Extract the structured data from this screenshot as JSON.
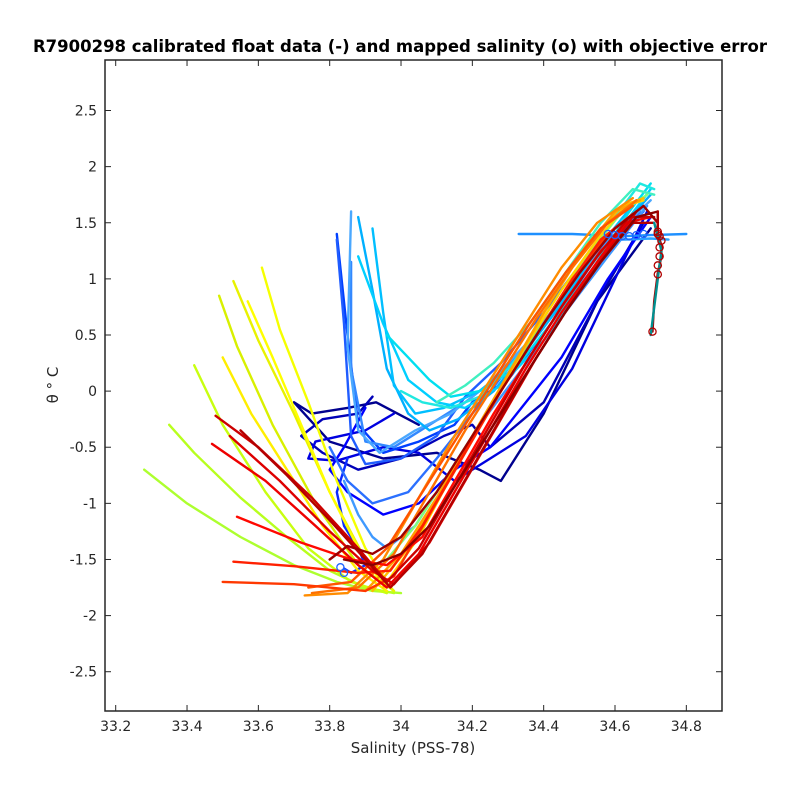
{
  "chart_data": {
    "type": "line",
    "title": "R7900298 calibrated float data (-) and mapped salinity (o) with objective error",
    "xlabel": "Salinity (PSS-78)",
    "ylabel": "θ ° C",
    "xlim": [
      33.17,
      34.9
    ],
    "ylim": [
      -2.85,
      2.95
    ],
    "xticks": [
      33.2,
      33.4,
      33.6,
      33.8,
      34,
      34.2,
      34.4,
      34.6,
      34.8
    ],
    "xtick_labels": [
      "33.2",
      "33.4",
      "33.6",
      "33.8",
      "34",
      "34.2",
      "34.4",
      "34.6",
      "34.8"
    ],
    "yticks": [
      -2.5,
      -2,
      -1.5,
      -1,
      -0.5,
      0,
      0.5,
      1,
      1.5,
      2,
      2.5
    ],
    "ytick_labels": [
      "-2.5",
      "-2",
      "-1.5",
      "-1",
      "-0.5",
      "0",
      "0.5",
      "1",
      "1.5",
      "2",
      "2.5"
    ],
    "grid": false,
    "series": [
      {
        "color": "#00008f",
        "x": [
          34.05,
          33.93,
          33.85,
          33.75,
          33.7,
          33.8,
          33.95,
          34.1,
          34.22,
          34.28,
          34.4,
          34.55,
          34.7
        ],
        "y": [
          -0.3,
          -0.1,
          -0.15,
          -0.2,
          -0.1,
          -0.45,
          -0.6,
          -0.55,
          -0.7,
          -0.8,
          -0.2,
          0.8,
          1.45
        ]
      },
      {
        "color": "#0000b8",
        "x": [
          33.92,
          33.88,
          33.78,
          33.72,
          33.78,
          33.88,
          34.0,
          34.12,
          34.2,
          34.25,
          34.4,
          34.55,
          34.68
        ],
        "y": [
          -0.05,
          -0.2,
          -0.25,
          -0.4,
          -0.55,
          -0.7,
          -0.6,
          -0.4,
          -0.3,
          -0.5,
          -0.1,
          0.8,
          1.5
        ]
      },
      {
        "color": "#0000e0",
        "x": [
          33.98,
          33.9,
          33.76,
          33.74,
          33.82,
          33.95,
          34.05,
          34.15,
          34.25,
          34.35,
          34.48,
          34.6,
          34.69
        ],
        "y": [
          -0.2,
          -0.35,
          -0.45,
          -0.6,
          -0.62,
          -0.5,
          -0.55,
          -0.8,
          -0.6,
          -0.4,
          0.2,
          1.0,
          1.6
        ]
      },
      {
        "color": "#0000ff",
        "x": [
          33.9,
          33.84,
          33.8,
          33.85,
          33.95,
          34.05,
          34.15,
          34.25,
          34.3,
          34.45,
          34.58,
          34.7
        ],
        "y": [
          -0.15,
          -0.5,
          -0.7,
          -0.9,
          -1.1,
          -1.0,
          -0.7,
          -0.5,
          -0.3,
          0.3,
          1.0,
          1.55
        ]
      },
      {
        "color": "#0a2bff",
        "x": [
          33.85,
          33.82,
          33.84,
          33.88,
          33.9,
          33.86,
          33.84
        ],
        "y": [
          -0.6,
          -0.9,
          -1.2,
          -1.4,
          -1.55,
          -1.62,
          -1.58
        ]
      },
      {
        "color": "#0040ff",
        "x": [
          33.82,
          33.85,
          33.88,
          33.95,
          34.05,
          34.15,
          34.2,
          34.3,
          34.42,
          34.55,
          34.68
        ],
        "y": [
          1.4,
          0.5,
          -0.3,
          -0.55,
          -0.45,
          -0.3,
          -0.1,
          0.1,
          0.6,
          1.2,
          1.6
        ]
      },
      {
        "color": "#1f5cff",
        "x": [
          33.82,
          33.84,
          33.86,
          33.9,
          34.0,
          34.1,
          34.18,
          34.28,
          34.4,
          34.52,
          34.66
        ],
        "y": [
          1.35,
          0.6,
          -0.4,
          -0.65,
          -0.6,
          -0.4,
          -0.05,
          0.25,
          0.7,
          1.2,
          1.55
        ]
      },
      {
        "color": "#2b70ff",
        "x": [
          33.8,
          33.85,
          33.92,
          34.02,
          34.1,
          34.2,
          34.3,
          34.42,
          34.55,
          34.67
        ],
        "y": [
          -0.5,
          -0.8,
          -1.0,
          -0.9,
          -0.6,
          -0.2,
          0.2,
          0.7,
          1.2,
          1.6
        ]
      },
      {
        "color": "#3388ff",
        "x": [
          33.86,
          33.86,
          33.9,
          33.98,
          34.08,
          34.18,
          34.28,
          34.4,
          34.52,
          34.65
        ],
        "y": [
          1.15,
          0.2,
          -0.45,
          -0.5,
          -0.3,
          -0.1,
          0.15,
          0.6,
          1.15,
          1.55
        ]
      },
      {
        "color": "#3f99ff",
        "x": [
          33.84,
          33.88,
          33.92,
          33.96,
          34.04,
          34.12,
          34.22,
          34.34,
          34.46,
          34.58,
          34.69
        ],
        "y": [
          -0.8,
          -1.1,
          -1.3,
          -1.4,
          -1.2,
          -0.8,
          -0.3,
          0.2,
          0.7,
          1.2,
          1.65
        ]
      },
      {
        "color": "#4aa8ff",
        "x": [
          33.86,
          33.85,
          33.88,
          33.94,
          34.04,
          34.14,
          34.24,
          34.36,
          34.48,
          34.6,
          34.7
        ],
        "y": [
          1.6,
          0.4,
          -0.35,
          -0.55,
          -0.35,
          -0.2,
          0.05,
          0.45,
          0.95,
          1.4,
          1.7
        ]
      },
      {
        "color": "#1e90ff",
        "x": [
          34.33,
          34.48,
          34.62,
          34.7,
          34.8
        ],
        "y": [
          1.4,
          1.4,
          1.38,
          1.39,
          1.4
        ]
      },
      {
        "color": "#2aa2ff",
        "x": [
          34.55,
          34.63,
          34.7,
          34.75
        ],
        "y": [
          1.35,
          1.35,
          1.36,
          1.35
        ]
      },
      {
        "color": "#00b0ff",
        "x": [
          33.88,
          33.92,
          33.96,
          34.02,
          34.08,
          34.16,
          34.26,
          34.36,
          34.48,
          34.6,
          34.7
        ],
        "y": [
          1.55,
          0.9,
          0.2,
          -0.2,
          -0.35,
          -0.25,
          0.0,
          0.4,
          0.9,
          1.4,
          1.75
        ]
      },
      {
        "color": "#00bfff",
        "x": [
          33.92,
          33.95,
          33.98,
          34.04,
          34.12,
          34.22,
          34.32,
          34.44,
          34.56,
          34.66
        ],
        "y": [
          1.45,
          0.7,
          0.05,
          -0.2,
          -0.15,
          0.0,
          0.25,
          0.75,
          1.3,
          1.7
        ]
      },
      {
        "color": "#00cfff",
        "x": [
          33.88,
          33.95,
          34.02,
          34.1,
          34.18,
          34.28,
          34.4,
          34.52,
          34.64,
          34.7
        ],
        "y": [
          1.2,
          0.6,
          0.1,
          -0.1,
          -0.15,
          0.05,
          0.45,
          1.0,
          1.55,
          1.8
        ]
      },
      {
        "color": "#00dff0",
        "x": [
          33.96,
          34.02,
          34.08,
          34.14,
          34.22,
          34.32,
          34.42,
          34.54,
          34.64,
          34.7
        ],
        "y": [
          0.5,
          0.3,
          0.1,
          -0.05,
          0.0,
          0.2,
          0.6,
          1.1,
          1.6,
          1.85
        ]
      },
      {
        "color": "#20e8e0",
        "x": [
          34.0,
          34.06,
          34.14,
          34.22,
          34.3,
          34.4,
          34.5,
          34.6,
          34.67,
          34.71
        ],
        "y": [
          0.0,
          -0.1,
          -0.15,
          -0.05,
          0.2,
          0.6,
          1.1,
          1.55,
          1.85,
          1.8
        ]
      },
      {
        "color": "#40f0c0",
        "x": [
          34.1,
          34.18,
          34.26,
          34.36,
          34.46,
          34.56,
          34.65,
          34.71
        ],
        "y": [
          -0.1,
          0.05,
          0.25,
          0.6,
          1.05,
          1.5,
          1.8,
          1.75
        ]
      },
      {
        "color": "#7fff7f",
        "x": [
          33.96,
          34.04,
          34.12,
          34.22,
          34.32,
          34.42,
          34.52,
          34.62,
          34.69
        ],
        "y": [
          -1.5,
          -1.2,
          -0.8,
          -0.3,
          0.2,
          0.7,
          1.2,
          1.6,
          1.75
        ]
      },
      {
        "color": "#adff2f",
        "x": [
          33.28,
          33.4,
          33.55,
          33.7,
          33.82,
          33.92,
          34.0
        ],
        "y": [
          -0.7,
          -1.0,
          -1.3,
          -1.55,
          -1.7,
          -1.78,
          -1.8
        ]
      },
      {
        "color": "#b8ff1e",
        "x": [
          33.35,
          33.42,
          33.55,
          33.68,
          33.8,
          33.9,
          33.98
        ],
        "y": [
          -0.3,
          -0.55,
          -0.95,
          -1.3,
          -1.6,
          -1.75,
          -1.8
        ]
      },
      {
        "color": "#c8ff10",
        "x": [
          33.42,
          33.5,
          33.62,
          33.74,
          33.86,
          33.96
        ],
        "y": [
          0.23,
          -0.3,
          -0.9,
          -1.4,
          -1.7,
          -1.8
        ]
      },
      {
        "color": "#d8f000",
        "x": [
          33.49,
          33.54,
          33.64,
          33.76,
          33.88,
          33.98
        ],
        "y": [
          0.85,
          0.4,
          -0.3,
          -1.0,
          -1.55,
          -1.78
        ]
      },
      {
        "color": "#e8f200",
        "x": [
          33.53,
          33.6,
          33.7,
          33.8,
          33.9,
          33.98
        ],
        "y": [
          0.98,
          0.45,
          -0.2,
          -0.9,
          -1.5,
          -1.78
        ]
      },
      {
        "color": "#f5ff00",
        "x": [
          33.61,
          33.66,
          33.74,
          33.82,
          33.9,
          33.96
        ],
        "y": [
          1.1,
          0.55,
          -0.1,
          -0.8,
          -1.4,
          -1.7
        ]
      },
      {
        "color": "#ffff00",
        "x": [
          33.57,
          33.64,
          33.72,
          33.8,
          33.88,
          33.94
        ],
        "y": [
          0.8,
          0.3,
          -0.3,
          -0.9,
          -1.4,
          -1.68
        ]
      },
      {
        "color": "#ffee00",
        "x": [
          33.5,
          33.58,
          33.68,
          33.78,
          33.88,
          33.96
        ],
        "y": [
          0.3,
          -0.2,
          -0.7,
          -1.2,
          -1.6,
          -1.78
        ]
      },
      {
        "color": "#ffd400",
        "x": [
          33.95,
          34.05,
          34.15,
          34.25,
          34.35,
          34.45,
          34.55,
          34.63,
          34.68
        ],
        "y": [
          -1.75,
          -1.3,
          -0.7,
          -0.15,
          0.4,
          0.9,
          1.35,
          1.65,
          1.7
        ]
      },
      {
        "color": "#ffbb00",
        "x": [
          33.92,
          34.02,
          34.12,
          34.22,
          34.32,
          34.42,
          34.52,
          34.62,
          34.68
        ],
        "y": [
          -1.78,
          -1.4,
          -0.85,
          -0.3,
          0.25,
          0.8,
          1.3,
          1.65,
          1.72
        ]
      },
      {
        "color": "#ffa000",
        "x": [
          33.9,
          34.0,
          34.1,
          34.2,
          34.3,
          34.4,
          34.5,
          34.6,
          34.67
        ],
        "y": [
          -1.78,
          -1.45,
          -0.95,
          -0.4,
          0.15,
          0.7,
          1.2,
          1.6,
          1.7
        ]
      },
      {
        "color": "#ff8c00",
        "x": [
          33.73,
          33.85,
          33.95,
          34.05,
          34.15,
          34.25,
          34.35,
          34.45,
          34.55,
          34.65
        ],
        "y": [
          -1.82,
          -1.8,
          -1.5,
          -0.95,
          -0.4,
          0.1,
          0.6,
          1.1,
          1.5,
          1.72
        ]
      },
      {
        "color": "#ff7000",
        "x": [
          33.75,
          33.88,
          33.98,
          34.08,
          34.18,
          34.28,
          34.38,
          34.48,
          34.58,
          34.66
        ],
        "y": [
          -1.8,
          -1.75,
          -1.45,
          -0.9,
          -0.35,
          0.15,
          0.65,
          1.1,
          1.5,
          1.7
        ]
      },
      {
        "color": "#ff5500",
        "x": [
          33.74,
          33.86,
          33.96,
          34.06,
          34.16,
          34.26,
          34.36,
          34.46,
          34.56,
          34.65
        ],
        "y": [
          -1.75,
          -1.7,
          -1.4,
          -0.9,
          -0.4,
          0.1,
          0.6,
          1.05,
          1.45,
          1.65
        ]
      },
      {
        "color": "#ff3800",
        "x": [
          33.5,
          33.7,
          33.9,
          33.98,
          34.08,
          34.18,
          34.28,
          34.38,
          34.48,
          34.58,
          34.66
        ],
        "y": [
          -1.7,
          -1.72,
          -1.78,
          -1.65,
          -1.1,
          -0.55,
          0.0,
          0.5,
          1.0,
          1.4,
          1.6
        ]
      },
      {
        "color": "#ff2000",
        "x": [
          33.53,
          33.7,
          33.88,
          33.97,
          34.06,
          34.16,
          34.26,
          34.36,
          34.46,
          34.56,
          34.65
        ],
        "y": [
          -1.52,
          -1.56,
          -1.62,
          -1.6,
          -1.2,
          -0.65,
          -0.1,
          0.4,
          0.9,
          1.35,
          1.58
        ]
      },
      {
        "color": "#ff0800",
        "x": [
          33.54,
          33.72,
          33.86,
          33.96,
          34.06,
          34.16,
          34.26,
          34.36,
          34.46,
          34.56,
          34.64
        ],
        "y": [
          -1.12,
          -1.35,
          -1.5,
          -1.55,
          -1.3,
          -0.75,
          -0.2,
          0.3,
          0.8,
          1.25,
          1.5
        ]
      },
      {
        "color": "#ee0000",
        "x": [
          33.47,
          33.62,
          33.76,
          33.88,
          33.96,
          34.05,
          34.15,
          34.25,
          34.35,
          34.45,
          34.55,
          34.63,
          34.7
        ],
        "y": [
          -0.47,
          -0.8,
          -1.2,
          -1.55,
          -1.75,
          -1.45,
          -0.9,
          -0.35,
          0.2,
          0.7,
          1.15,
          1.5,
          1.55
        ]
      },
      {
        "color": "#dd0000",
        "x": [
          33.52,
          33.66,
          33.8,
          33.92,
          33.98,
          34.08,
          34.18,
          34.28,
          34.38,
          34.48,
          34.58,
          34.66
        ],
        "y": [
          -0.4,
          -0.8,
          -1.25,
          -1.6,
          -1.72,
          -1.35,
          -0.8,
          -0.25,
          0.3,
          0.8,
          1.25,
          1.6
        ]
      },
      {
        "color": "#cc0000",
        "x": [
          33.48,
          33.6,
          33.75,
          33.88,
          33.96,
          34.05,
          34.15,
          34.25,
          34.35,
          34.45,
          34.55,
          34.64,
          34.71
        ],
        "y": [
          -0.22,
          -0.5,
          -0.95,
          -1.4,
          -1.7,
          -1.4,
          -0.85,
          -0.3,
          0.25,
          0.75,
          1.2,
          1.55,
          1.55
        ]
      },
      {
        "color": "#b40000",
        "x": [
          33.55,
          33.68,
          33.8,
          33.9,
          33.97,
          34.06,
          34.16,
          34.26,
          34.36,
          34.46,
          34.56,
          34.65,
          34.71
        ],
        "y": [
          -0.35,
          -0.75,
          -1.15,
          -1.5,
          -1.75,
          -1.45,
          -0.9,
          -0.35,
          0.2,
          0.7,
          1.15,
          1.5,
          1.5
        ]
      },
      {
        "color": "#9c0000",
        "x": [
          33.8,
          33.85,
          33.92,
          34.0,
          34.1,
          34.2,
          34.3,
          34.4,
          34.5,
          34.6,
          34.68,
          34.72
        ],
        "y": [
          -1.5,
          -1.38,
          -1.45,
          -1.3,
          -0.9,
          -0.4,
          0.1,
          0.6,
          1.05,
          1.45,
          1.65,
          1.5
        ]
      },
      {
        "color": "#8b0000",
        "x": [
          33.84,
          33.92,
          34.0,
          34.08,
          34.16,
          34.26,
          34.36,
          34.46,
          34.56,
          34.66,
          34.72,
          34.72
        ],
        "y": [
          -1.5,
          -1.55,
          -1.45,
          -1.2,
          -0.8,
          -0.3,
          0.2,
          0.7,
          1.15,
          1.55,
          1.6,
          1.4
        ]
      },
      {
        "color": "#aa0000",
        "x": [
          34.72,
          34.72,
          34.73,
          34.73,
          34.72,
          34.71,
          34.705
        ],
        "y": [
          1.6,
          1.4,
          1.3,
          1.2,
          1.05,
          0.8,
          0.53
        ]
      },
      {
        "color": "#009090",
        "x": [
          34.71,
          34.72,
          34.73,
          34.72,
          34.7
        ],
        "y": [
          1.5,
          1.38,
          1.25,
          1.0,
          0.5
        ]
      }
    ],
    "mapped_points": {
      "color": "#b00000",
      "x": [
        34.705,
        34.72,
        34.72,
        34.725,
        34.725,
        34.73,
        34.725,
        34.72,
        34.72
      ],
      "y": [
        0.53,
        1.04,
        1.12,
        1.2,
        1.28,
        1.34,
        1.38,
        1.4,
        1.42
      ]
    },
    "mapped_blue_points": {
      "color": "#1e64ff",
      "x": [
        34.58,
        34.6,
        34.62,
        34.64,
        34.66,
        34.68,
        33.83,
        33.84
      ],
      "y": [
        1.4,
        1.39,
        1.38,
        1.38,
        1.39,
        1.4,
        -1.57,
        -1.62
      ]
    }
  }
}
